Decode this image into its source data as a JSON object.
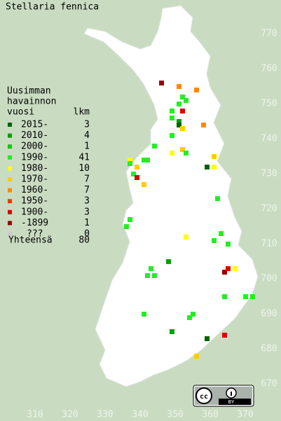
{
  "map": {
    "title": "Stellaria fennica",
    "legend": {
      "header": [
        "Uusimman",
        "havainnon",
        "vuosi"
      ],
      "count_header": "lkm",
      "items": [
        {
          "label": "2015-",
          "count": 3,
          "color": "#006400"
        },
        {
          "label": "2010-",
          "count": 4,
          "color": "#00a000"
        },
        {
          "label": "2000-",
          "count": 1,
          "color": "#00cc00"
        },
        {
          "label": "1990-",
          "count": 41,
          "color": "#22ee22"
        },
        {
          "label": "1980-",
          "count": 10,
          "color": "#ffff00"
        },
        {
          "label": "1970-",
          "count": 7,
          "color": "#ffcc00"
        },
        {
          "label": "1960-",
          "count": 7,
          "color": "#ff8800"
        },
        {
          "label": "1950-",
          "count": 3,
          "color": "#ff3300"
        },
        {
          "label": "1900-",
          "count": 3,
          "color": "#dd0000"
        },
        {
          "label": "-1899",
          "count": 1,
          "color": "#990000"
        },
        {
          "label": "???",
          "count": 0,
          "color": "#cccccc"
        }
      ],
      "total_label": "Yhteensä",
      "total": 80
    },
    "xticks": [
      310,
      320,
      330,
      340,
      350,
      360,
      370
    ],
    "yticks": [
      670,
      680,
      690,
      700,
      710,
      720,
      730,
      740,
      750,
      760,
      770
    ],
    "observations": [
      [
        346,
        756,
        9
      ],
      [
        351,
        755,
        6
      ],
      [
        356,
        754,
        6
      ],
      [
        352,
        752,
        3
      ],
      [
        353,
        751,
        3
      ],
      [
        349,
        748,
        3
      ],
      [
        351,
        750,
        3
      ],
      [
        352,
        748,
        8
      ],
      [
        349,
        746,
        3
      ],
      [
        351,
        745,
        1
      ],
      [
        351,
        744,
        0
      ],
      [
        352,
        743,
        5
      ],
      [
        358,
        744,
        6
      ],
      [
        349,
        741,
        3
      ],
      [
        344,
        738,
        3
      ],
      [
        349,
        736,
        4
      ],
      [
        352,
        737,
        5
      ],
      [
        353,
        736,
        3
      ],
      [
        342,
        734,
        3
      ],
      [
        341,
        734,
        3
      ],
      [
        337,
        734,
        4
      ],
      [
        337,
        733,
        3
      ],
      [
        339,
        732,
        5
      ],
      [
        359,
        732,
        0
      ],
      [
        361,
        732,
        4
      ],
      [
        361,
        735,
        5
      ],
      [
        338,
        730,
        3
      ],
      [
        339,
        729,
        8
      ],
      [
        341,
        727,
        5
      ],
      [
        362,
        723,
        3
      ],
      [
        337,
        717,
        3
      ],
      [
        336,
        715,
        3
      ],
      [
        353,
        712,
        4
      ],
      [
        361,
        711,
        3
      ],
      [
        363,
        713,
        3
      ],
      [
        365,
        710,
        3
      ],
      [
        343,
        703,
        3
      ],
      [
        344,
        701,
        3
      ],
      [
        348,
        705,
        1
      ],
      [
        342,
        701,
        3
      ],
      [
        364,
        702,
        9
      ],
      [
        365,
        703,
        8
      ],
      [
        367,
        703,
        4
      ],
      [
        370,
        695,
        3
      ],
      [
        372,
        695,
        3
      ],
      [
        364,
        695,
        3
      ],
      [
        355,
        690,
        3
      ],
      [
        354,
        689,
        3
      ],
      [
        341,
        690,
        3
      ],
      [
        349,
        685,
        1
      ],
      [
        364,
        684,
        8
      ],
      [
        359,
        683,
        0
      ],
      [
        356,
        678,
        5
      ]
    ],
    "license_badge": "BY"
  }
}
